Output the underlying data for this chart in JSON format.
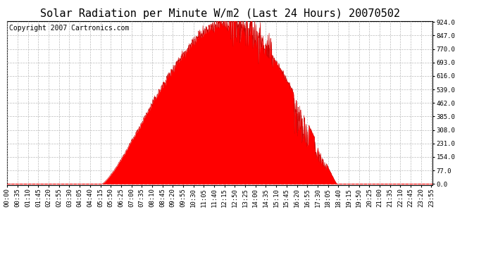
{
  "title": "Solar Radiation per Minute W/m2 (Last 24 Hours) 20070502",
  "copyright_text": "Copyright 2007 Cartronics.com",
  "y_ticks": [
    0.0,
    77.0,
    154.0,
    231.0,
    308.0,
    385.0,
    462.0,
    539.0,
    616.0,
    693.0,
    770.0,
    847.0,
    924.0
  ],
  "y_min": 0.0,
  "y_max": 924.0,
  "fill_color": "#ff0000",
  "line_color": "#cc0000",
  "background_color": "#ffffff",
  "grid_color": "#bbbbbb",
  "dashed_line_color": "#ff0000",
  "x_tick_interval_minutes": 35,
  "total_minutes": 1440,
  "sunrise_minute": 320,
  "sunset_minute": 1115,
  "peak_minute": 750,
  "peak_value": 924.0,
  "title_fontsize": 11,
  "copyright_fontsize": 7,
  "tick_fontsize": 6.5
}
